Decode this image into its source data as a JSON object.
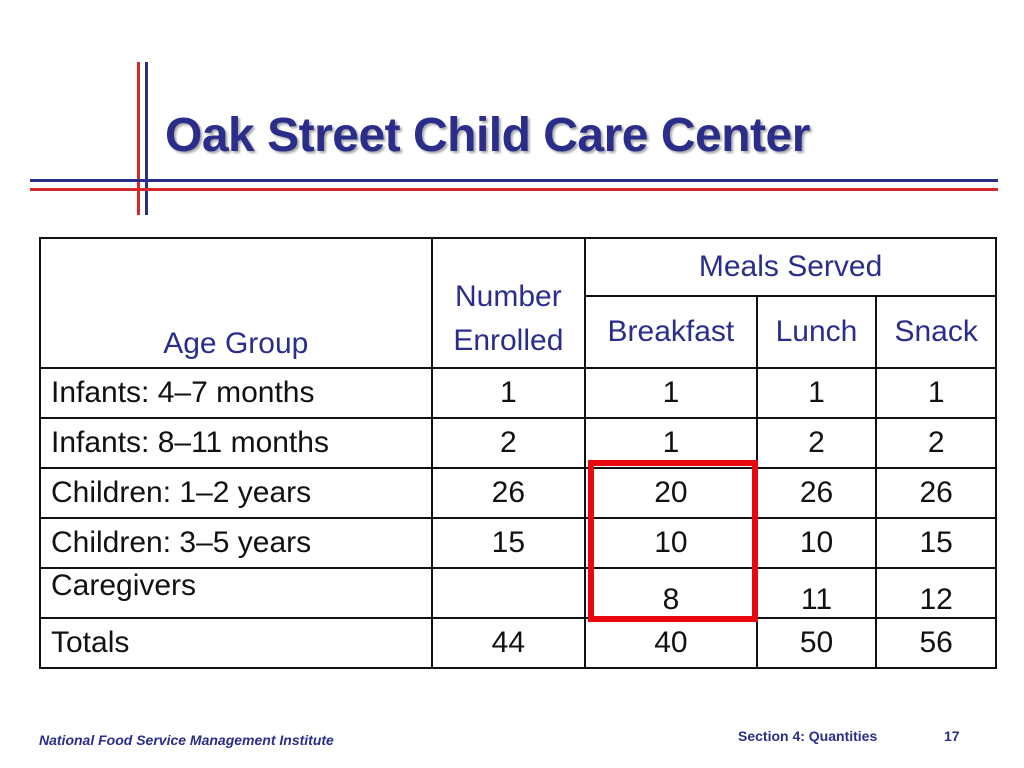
{
  "title": "Oak Street Child Care Center",
  "table": {
    "headers": {
      "age_group": "Age Group",
      "number_line1": "Number",
      "number_line2": "Enrolled",
      "meals_served": "Meals Served",
      "breakfast": "Breakfast",
      "lunch": "Lunch",
      "snack": "Snack"
    },
    "rows": [
      {
        "label": "Infants: 4–7 months",
        "enrolled": "1",
        "breakfast": "1",
        "lunch": "1",
        "snack": "1"
      },
      {
        "label": "Infants: 8–11 months",
        "enrolled": "2",
        "breakfast": "1",
        "lunch": "2",
        "snack": "2"
      },
      {
        "label": "Children: 1–2 years",
        "enrolled": "26",
        "breakfast": "20",
        "lunch": "26",
        "snack": "26"
      },
      {
        "label": "Children: 3–5 years",
        "enrolled": "15",
        "breakfast": "10",
        "lunch": "10",
        "snack": "15"
      },
      {
        "label": "Caregivers",
        "enrolled": "",
        "breakfast": "8",
        "lunch": "11",
        "snack": "12"
      },
      {
        "label": "Totals",
        "enrolled": "44",
        "breakfast": "40",
        "lunch": "50",
        "snack": "56"
      }
    ]
  },
  "colors": {
    "title": "#2b2d8a",
    "highlight": "#e8080f",
    "accent_red": "#d62a2a"
  },
  "footer": {
    "institute": "National Food Service Management Institute",
    "section": "Section 4: Quantities",
    "page": "17"
  }
}
